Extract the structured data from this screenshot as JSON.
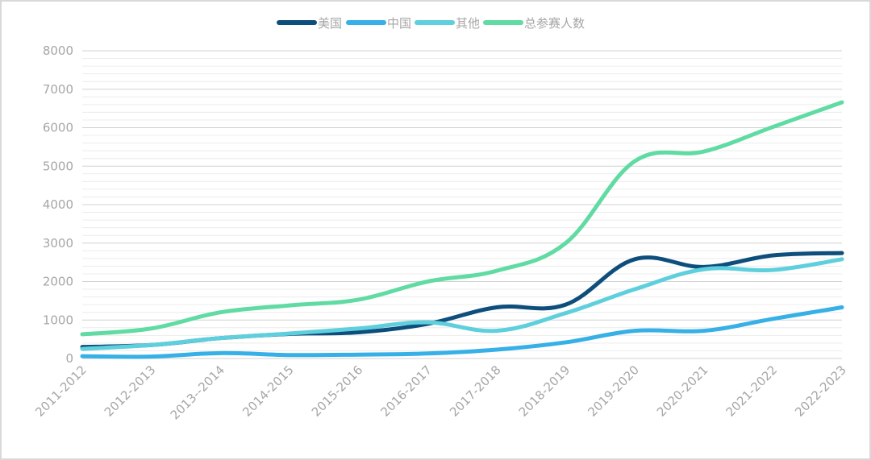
{
  "chart_data": {
    "type": "line",
    "title": "",
    "xlabel": "",
    "ylabel": "",
    "ylim": [
      0,
      8000
    ],
    "yticks": [
      0,
      1000,
      2000,
      3000,
      4000,
      5000,
      6000,
      7000,
      8000
    ],
    "grid": true,
    "legend_position": "top-center",
    "categories": [
      "2011-2012",
      "2012-2013",
      "2013--2014",
      "2014-2015",
      "2015-2016",
      "2016-2017",
      "2017-2018",
      "2018-2019",
      "2019-2020",
      "2020-2021",
      "2021-2022",
      "2022-2023"
    ],
    "series": [
      {
        "name": "美国",
        "color": "#0e4e7c",
        "values": [
          300,
          350,
          530,
          640,
          680,
          900,
          1330,
          1400,
          2580,
          2380,
          2680,
          2740
        ]
      },
      {
        "name": "中国",
        "color": "#36b0e6",
        "values": [
          60,
          50,
          140,
          90,
          100,
          130,
          230,
          420,
          720,
          720,
          1030,
          1330
        ]
      },
      {
        "name": "其他",
        "color": "#5ecfdc",
        "values": [
          250,
          350,
          530,
          650,
          780,
          940,
          720,
          1180,
          1800,
          2320,
          2300,
          2580
        ]
      },
      {
        "name": "总参赛人数",
        "color": "#5fdba3",
        "values": [
          630,
          780,
          1200,
          1380,
          1530,
          2000,
          2280,
          3000,
          5130,
          5380,
          6020,
          6660
        ]
      }
    ]
  }
}
